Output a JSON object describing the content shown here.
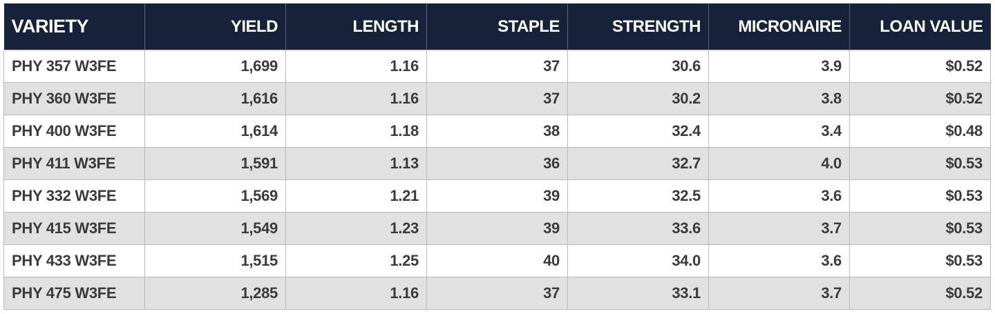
{
  "table": {
    "header": [
      "VARIETY",
      "YIELD",
      "LENGTH",
      "STAPLE",
      "STRENGTH",
      "MICRONAIRE",
      "LOAN VALUE"
    ],
    "rows": [
      [
        "PHY 357 W3FE",
        "1,699",
        "1.16",
        "37",
        "30.6",
        "3.9",
        "$0.52"
      ],
      [
        "PHY 360 W3FE",
        "1,616",
        "1.16",
        "37",
        "30.2",
        "3.8",
        "$0.52"
      ],
      [
        "PHY 400 W3FE",
        "1,614",
        "1.18",
        "38",
        "32.4",
        "3.4",
        "$0.48"
      ],
      [
        "PHY 411 W3FE",
        "1,591",
        "1.13",
        "36",
        "32.7",
        "4.0",
        "$0.53"
      ],
      [
        "PHY 332 W3FE",
        "1,569",
        "1.21",
        "39",
        "32.5",
        "3.6",
        "$0.53"
      ],
      [
        "PHY 415 W3FE",
        "1,549",
        "1.23",
        "39",
        "33.6",
        "3.7",
        "$0.53"
      ],
      [
        "PHY 433 W3FE",
        "1,515",
        "1.25",
        "40",
        "34.0",
        "3.6",
        "$0.53"
      ],
      [
        "PHY 475 W3FE",
        "1,285",
        "1.16",
        "37",
        "33.1",
        "3.7",
        "$0.52"
      ]
    ]
  }
}
